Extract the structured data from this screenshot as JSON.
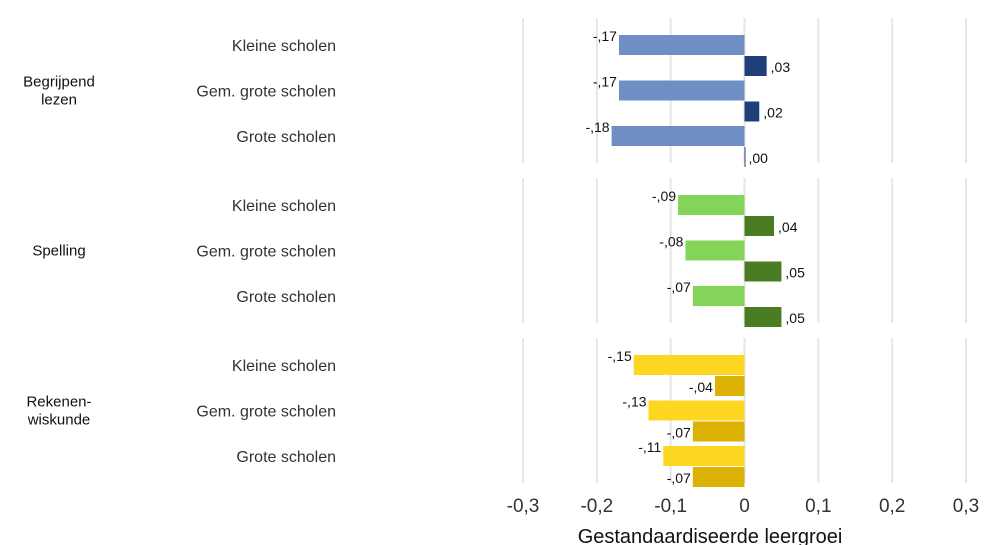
{
  "chart_data": {
    "type": "bar",
    "orientation": "horizontal",
    "xlabel": "Gestandaardiseerde leergroei",
    "xlim": [
      -0.3,
      0.3
    ],
    "xticks": [
      -0.3,
      -0.2,
      -0.1,
      0,
      0.1,
      0.2,
      0.3
    ],
    "xtick_labels": [
      "-0,3",
      "-0,2",
      "-0,1",
      "0",
      "0,1",
      "0,2",
      "0,3"
    ],
    "grid": true,
    "groups": [
      {
        "name": "Begrijpend lezen",
        "colors": {
          "light": "#6f8fc4",
          "dark": "#1f3f7a"
        },
        "categories": [
          "Kleine scholen",
          "Gem. grote scholen",
          "Grote scholen"
        ],
        "light_values": [
          -0.17,
          -0.17,
          -0.18
        ],
        "light_labels": [
          "-,17",
          "-,17",
          "-,18"
        ],
        "dark_values": [
          0.03,
          0.02,
          0.0
        ],
        "dark_labels": [
          ",03",
          ",02",
          ",00"
        ]
      },
      {
        "name": "Spelling",
        "colors": {
          "light": "#85d45a",
          "dark": "#4a7d23"
        },
        "categories": [
          "Kleine scholen",
          "Gem. grote scholen",
          "Grote scholen"
        ],
        "light_values": [
          -0.09,
          -0.08,
          -0.07
        ],
        "light_labels": [
          "-,09",
          "-,08",
          "-,07"
        ],
        "dark_values": [
          0.04,
          0.05,
          0.05
        ],
        "dark_labels": [
          ",04",
          ",05",
          ",05"
        ]
      },
      {
        "name": "Rekenen-\nwiskunde",
        "colors": {
          "light": "#fcd621",
          "dark": "#dcb304"
        },
        "categories": [
          "Kleine scholen",
          "Gem. grote scholen",
          "Grote scholen"
        ],
        "light_values": [
          -0.15,
          -0.13,
          -0.11
        ],
        "light_labels": [
          "-,15",
          "-,13",
          "-,11"
        ],
        "dark_values": [
          -0.04,
          -0.07,
          -0.07
        ],
        "dark_labels": [
          "-,04",
          "-,07",
          "-,07"
        ]
      }
    ]
  }
}
